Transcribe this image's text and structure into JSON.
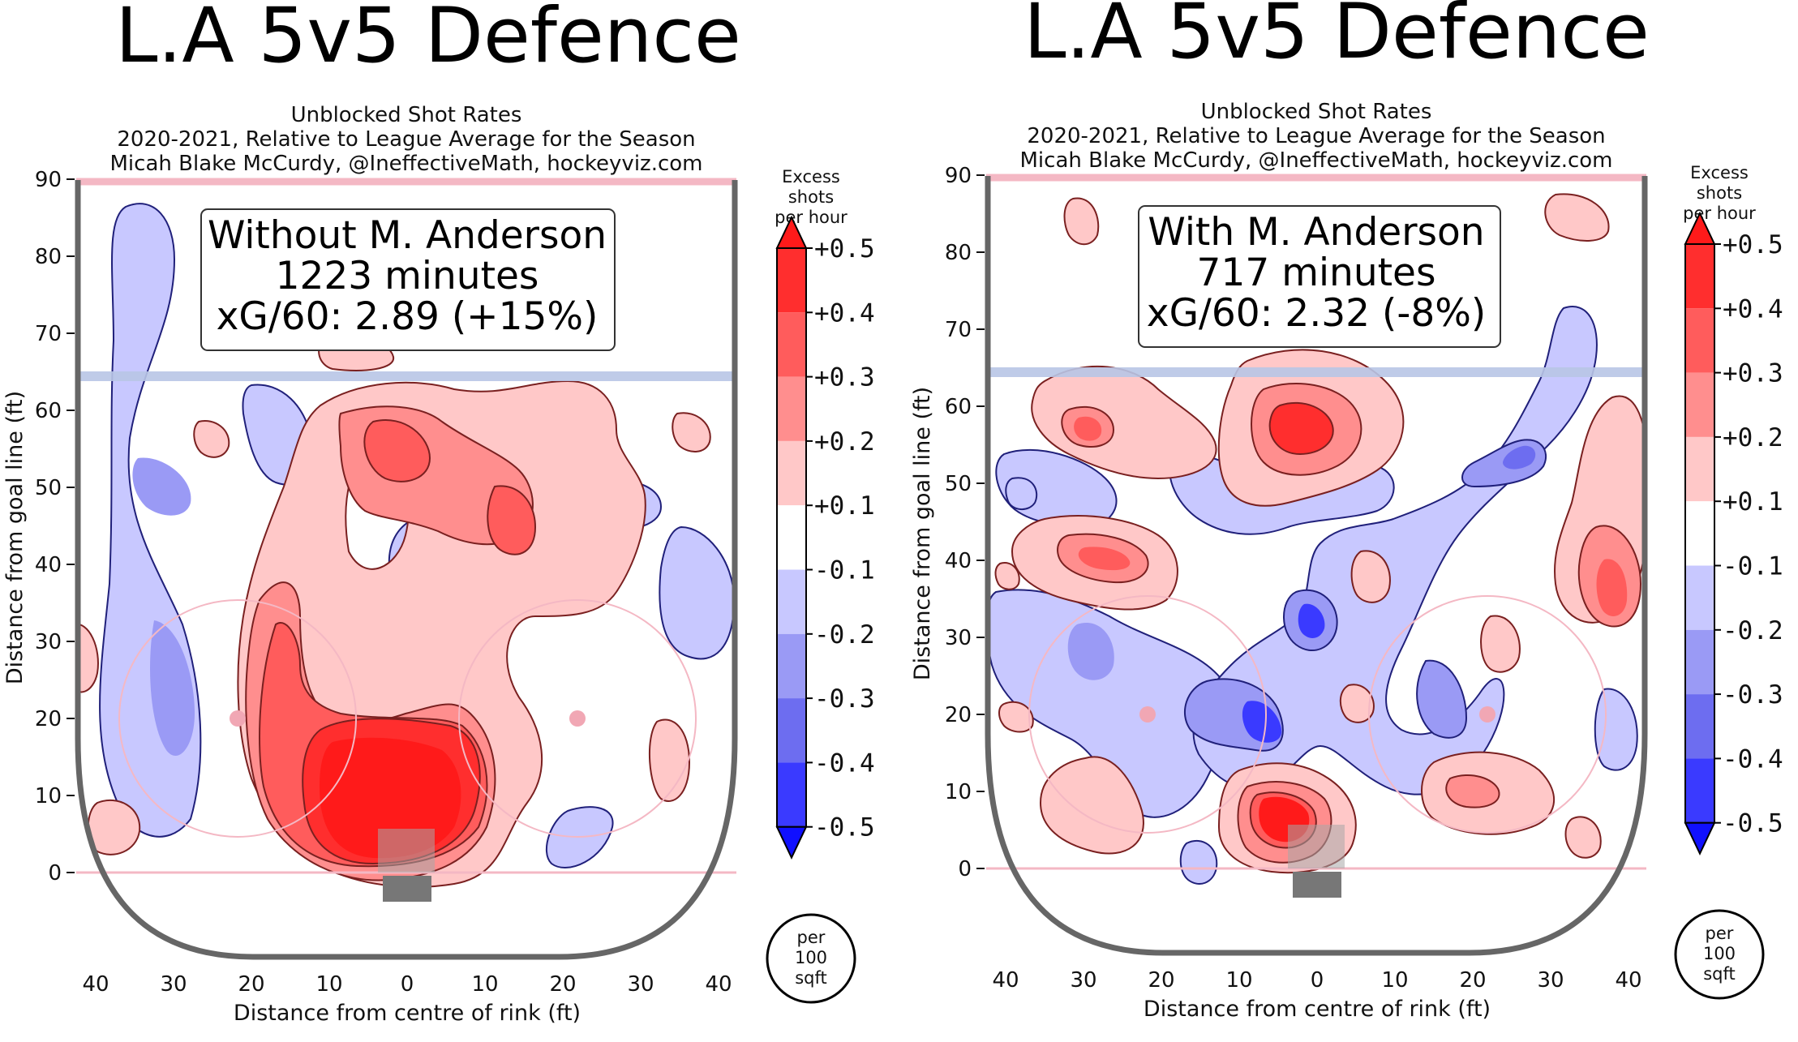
{
  "colors": {
    "band_pos_05": "#ff1a1a",
    "band_pos_04": "#ff2e2e",
    "band_pos_03": "#ff5c5c",
    "band_pos_02": "#ff8e8e",
    "band_pos_01": "#ffc8c8",
    "band_zero": "#ffffff",
    "band_neg_01": "#c8c8ff",
    "band_neg_02": "#9a9af5",
    "band_neg_03": "#6d6df0",
    "band_neg_04": "#3a3aff",
    "band_neg_05": "#1010ff",
    "rink_board": "#666666",
    "goal_line": "#f4b8c4",
    "blue_line": "#b9c6e6"
  },
  "chart_data": [
    {
      "type": "heatmap",
      "title": "L.A 5v5 Defence",
      "subtitle_lines": [
        "Unblocked Shot Rates",
        "2020-2021, Relative to League Average for the Season",
        "Micah Blake McCurdy, @IneffectiveMath, hockeyviz.com"
      ],
      "annotation_lines": [
        "Without M. Anderson",
        "1223 minutes",
        "xG/60: 2.89 (+15%)"
      ],
      "player": "M. Anderson",
      "with_player": false,
      "minutes": 1223,
      "xg_per_60": 2.89,
      "xg_relative_pct": 15,
      "xlabel": "Distance from centre of rink (ft)",
      "ylabel": "Distance from goal line (ft)",
      "xlim": [
        -42,
        42
      ],
      "ylim": [
        -4,
        90
      ],
      "xticks": [
        "40",
        "30",
        "20",
        "10",
        "0",
        "10",
        "20",
        "30",
        "40"
      ],
      "yticks": [
        "0",
        "10",
        "20",
        "30",
        "40",
        "50",
        "60",
        "70",
        "80",
        "90"
      ],
      "colorbar_title": [
        "Excess",
        "shots",
        "per hour"
      ],
      "colorbar_ticks": [
        "+0.5",
        "+0.4",
        "+0.3",
        "+0.2",
        "+0.1",
        "-0.1",
        "-0.2",
        "-0.3",
        "-0.4",
        "-0.5"
      ],
      "colorbar_unit": [
        "per",
        "100",
        "sqft"
      ]
    },
    {
      "type": "heatmap",
      "title": "L.A 5v5 Defence",
      "subtitle_lines": [
        "Unblocked Shot Rates",
        "2020-2021, Relative to League Average for the Season",
        "Micah Blake McCurdy, @IneffectiveMath, hockeyviz.com"
      ],
      "annotation_lines": [
        "With M. Anderson",
        "717 minutes",
        "xG/60: 2.32 (-8%)"
      ],
      "player": "M. Anderson",
      "with_player": true,
      "minutes": 717,
      "xg_per_60": 2.32,
      "xg_relative_pct": -8,
      "xlabel": "Distance from centre of rink (ft)",
      "ylabel": "Distance from goal line (ft)",
      "xlim": [
        -42,
        42
      ],
      "ylim": [
        -4,
        90
      ],
      "xticks": [
        "40",
        "30",
        "20",
        "10",
        "0",
        "10",
        "20",
        "30",
        "40"
      ],
      "yticks": [
        "0",
        "10",
        "20",
        "30",
        "40",
        "50",
        "60",
        "70",
        "80",
        "90"
      ],
      "colorbar_title": [
        "Excess",
        "shots",
        "per hour"
      ],
      "colorbar_ticks": [
        "+0.5",
        "+0.4",
        "+0.3",
        "+0.2",
        "+0.1",
        "-0.1",
        "-0.2",
        "-0.3",
        "-0.4",
        "-0.5"
      ],
      "colorbar_unit": [
        "per",
        "100",
        "sqft"
      ]
    }
  ]
}
